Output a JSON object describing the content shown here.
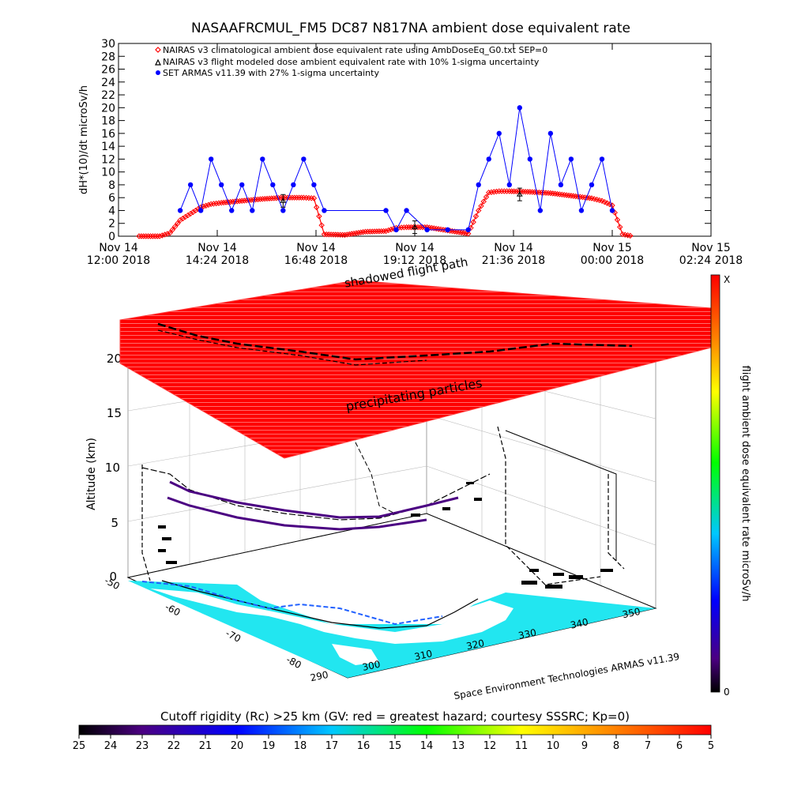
{
  "colors": {
    "nairas_clim": "#ff0000",
    "nairas_flight": "#000000",
    "armas": "#0000ff",
    "ocean": "#22e6f0",
    "hazard": "#ff0000"
  },
  "chart_data": [
    {
      "type": "line",
      "title": "NASAAFRCMUL_FM5 DC87 N817NA ambient dose equivalent rate",
      "ylabel": "dH*(10)/dt microSv/h",
      "ylim": [
        0,
        30
      ],
      "yticks": [
        0,
        2,
        4,
        6,
        8,
        10,
        12,
        14,
        16,
        18,
        20,
        22,
        24,
        26,
        28,
        30
      ],
      "x_ticks": [
        {
          "line1": "Nov 14",
          "line2": "12:00 2018"
        },
        {
          "line1": "Nov 14",
          "line2": "14:24 2018"
        },
        {
          "line1": "Nov 14",
          "line2": "16:48 2018"
        },
        {
          "line1": "Nov 14",
          "line2": "19:12 2018"
        },
        {
          "line1": "Nov 14",
          "line2": "21:36 2018"
        },
        {
          "line1": "Nov 15",
          "line2": "00:00 2018"
        },
        {
          "line1": "Nov 15",
          "line2": "02:24 2018"
        }
      ],
      "legend": [
        "NAIRAS v3 climatological ambient dose equivalent rate using AmbDoseEq_G0.txt SEP=0",
        "NAIRAS v3 flight modeled dose ambient equivalent rate with 10% 1-sigma uncertainty",
        "SET ARMAS v11.39 with 27% 1-sigma uncertainty"
      ],
      "legend_position": "top-left",
      "series": [
        {
          "name": "NAIRAS v3 climatological ambient dose equivalent rate using AmbDoseEq_G0.txt SEP=0",
          "marker": "diamond",
          "x": [
            "12:30",
            "13:00",
            "13:15",
            "13:30",
            "13:45",
            "14:00",
            "14:15",
            "14:30",
            "15:00",
            "15:30",
            "16:00",
            "16:30",
            "16:45",
            "17:00",
            "17:30",
            "18:00",
            "18:30",
            "18:45",
            "19:00",
            "19:30",
            "20:00",
            "20:30",
            "20:45",
            "21:00",
            "21:15",
            "21:30",
            "22:00",
            "22:30",
            "23:00",
            "23:30",
            "23:45",
            "00:00",
            "00:15",
            "00:30"
          ],
          "y": [
            0,
            0,
            0.5,
            2.5,
            3.5,
            4.5,
            5.0,
            5.2,
            5.5,
            5.8,
            6.0,
            6.0,
            5.9,
            0.3,
            0.2,
            0.7,
            0.8,
            1.3,
            1.4,
            1.4,
            0.9,
            0.4,
            4.0,
            6.8,
            7.0,
            7.0,
            6.9,
            6.7,
            6.3,
            5.9,
            5.5,
            4.8,
            0.3,
            0.0
          ]
        },
        {
          "name": "NAIRAS v3 flight modeled dose ambient equivalent rate with 10% 1-sigma uncertainty",
          "marker": "triangle",
          "x": [
            "16:00",
            "19:12",
            "21:45"
          ],
          "y": [
            5.5,
            1.4,
            6.5
          ]
        },
        {
          "name": "SET ARMAS v11.39 with 27% 1-sigma uncertainty",
          "marker": "circle",
          "x": [
            "13:30",
            "13:45",
            "14:00",
            "14:15",
            "14:30",
            "14:45",
            "15:00",
            "15:15",
            "15:30",
            "15:45",
            "16:00",
            "16:15",
            "16:30",
            "16:45",
            "17:00",
            "18:30",
            "18:45",
            "19:00",
            "19:30",
            "20:00",
            "20:30",
            "20:45",
            "21:00",
            "21:15",
            "21:30",
            "21:45",
            "22:00",
            "22:15",
            "22:30",
            "22:45",
            "23:00",
            "23:15",
            "23:30",
            "23:45",
            "00:00"
          ],
          "y": [
            4,
            8,
            4,
            12,
            8,
            4,
            8,
            4,
            12,
            8,
            4,
            8,
            12,
            8,
            4,
            4,
            1,
            4,
            1,
            1,
            1,
            8,
            12,
            16,
            8,
            20,
            12,
            4,
            16,
            8,
            12,
            4,
            8,
            12,
            4
          ]
        }
      ]
    },
    {
      "type": "scatter",
      "zlabel": "Altitude (km)",
      "zlim": [
        0,
        20
      ],
      "zticks": [
        0,
        5,
        10,
        15,
        20
      ],
      "lon_ticks": [
        290,
        300,
        310,
        320,
        330,
        340,
        350
      ],
      "lat_ticks": [
        -50,
        -60,
        -70,
        -80
      ],
      "annotations": [
        "shadowed flight path",
        "precipitating particles",
        "Space Environment Technologies ARMAS v11.39"
      ],
      "colorbar": {
        "label": "flight ambient dose equivalent rate microSv/h",
        "top_label": "X",
        "bottom_label": "0"
      },
      "cutoff_colorbar": {
        "title": "Cutoff rigidity (Rc) >25 km (GV: red = greatest hazard; courtesy SSSRC; Kp=0)",
        "tick_labels": [
          "25",
          "24",
          "23",
          "22",
          "21",
          "20",
          "19",
          "18",
          "17",
          "16",
          "15",
          "14",
          "13",
          "12",
          "11",
          "10",
          "9",
          "8",
          "7",
          "6",
          "5"
        ]
      }
    }
  ]
}
